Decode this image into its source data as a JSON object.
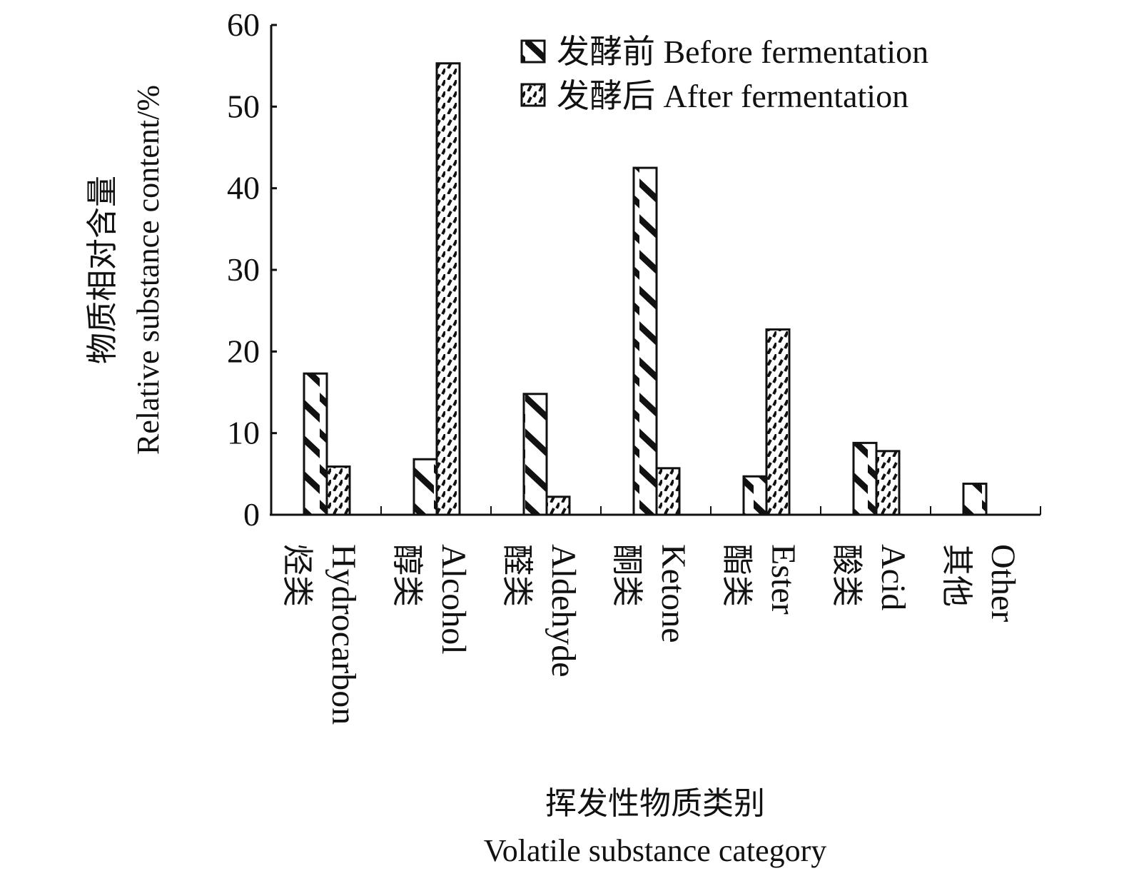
{
  "chart_data": {
    "type": "bar",
    "ylabel_cn": "物质相对含量",
    "ylabel_en": "Relative substance content/%",
    "xlabel_cn": "挥发性物质类别",
    "xlabel_en": "Volatile substance category",
    "ylim": [
      0,
      60
    ],
    "yticks": [
      0,
      10,
      20,
      30,
      40,
      50,
      60
    ],
    "grid": false,
    "legend_position": "top-right",
    "categories": [
      {
        "cn": "烃类",
        "en": "Hydrocarbon"
      },
      {
        "cn": "醇类",
        "en": "Alcohol"
      },
      {
        "cn": "醛类",
        "en": "Aldehyde"
      },
      {
        "cn": "酮类",
        "en": "Ketone"
      },
      {
        "cn": "酯类",
        "en": "Ester"
      },
      {
        "cn": "酸类",
        "en": "Acid"
      },
      {
        "cn": "其他",
        "en": "Other"
      }
    ],
    "series": [
      {
        "name": "发酵前 Before fermentation",
        "pattern": "backslash-bands",
        "values": [
          17.3,
          6.8,
          14.8,
          42.5,
          4.7,
          8.8,
          3.8
        ]
      },
      {
        "name": "发酵后 After fermentation",
        "pattern": "slash-dashes",
        "values": [
          5.9,
          55.3,
          2.2,
          5.7,
          22.7,
          7.8,
          0
        ]
      }
    ],
    "colors": {
      "ink": "#111111",
      "background": "#ffffff"
    }
  }
}
